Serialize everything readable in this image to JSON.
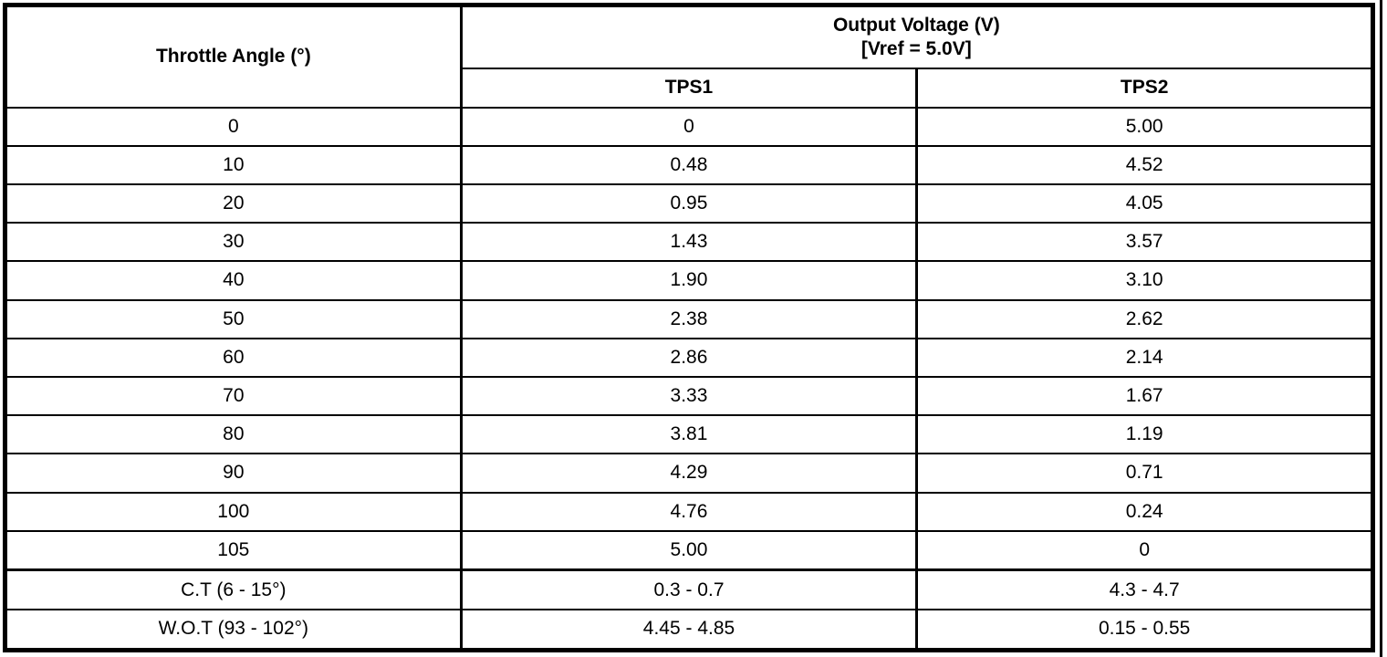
{
  "table": {
    "col1_header": "Throttle Angle (°)",
    "output_header_line1": "Output Voltage (V)",
    "output_header_line2": "[Vref = 5.0V]",
    "sub_headers": [
      "TPS1",
      "TPS2"
    ],
    "rows": [
      {
        "angle": "0",
        "tps1": "0",
        "tps2": "5.00"
      },
      {
        "angle": "10",
        "tps1": "0.48",
        "tps2": "4.52"
      },
      {
        "angle": "20",
        "tps1": "0.95",
        "tps2": "4.05"
      },
      {
        "angle": "30",
        "tps1": "1.43",
        "tps2": "3.57"
      },
      {
        "angle": "40",
        "tps1": "1.90",
        "tps2": "3.10"
      },
      {
        "angle": "50",
        "tps1": "2.38",
        "tps2": "2.62"
      },
      {
        "angle": "60",
        "tps1": "2.86",
        "tps2": "2.14"
      },
      {
        "angle": "70",
        "tps1": "3.33",
        "tps2": "1.67"
      },
      {
        "angle": "80",
        "tps1": "3.81",
        "tps2": "1.19"
      },
      {
        "angle": "90",
        "tps1": "4.29",
        "tps2": "0.71"
      },
      {
        "angle": "100",
        "tps1": "4.76",
        "tps2": "0.24"
      },
      {
        "angle": "105",
        "tps1": "5.00",
        "tps2": "0"
      },
      {
        "angle": "C.T (6 - 15°)",
        "tps1": "0.3 - 0.7",
        "tps2": "4.3 - 4.7",
        "separator_before": true
      },
      {
        "angle": "W.O.T (93 - 102°)",
        "tps1": "4.45 - 4.85",
        "tps2": "0.15 - 0.55"
      }
    ],
    "colors": {
      "border": "#000000",
      "background": "#ffffff",
      "text": "#000000"
    }
  }
}
